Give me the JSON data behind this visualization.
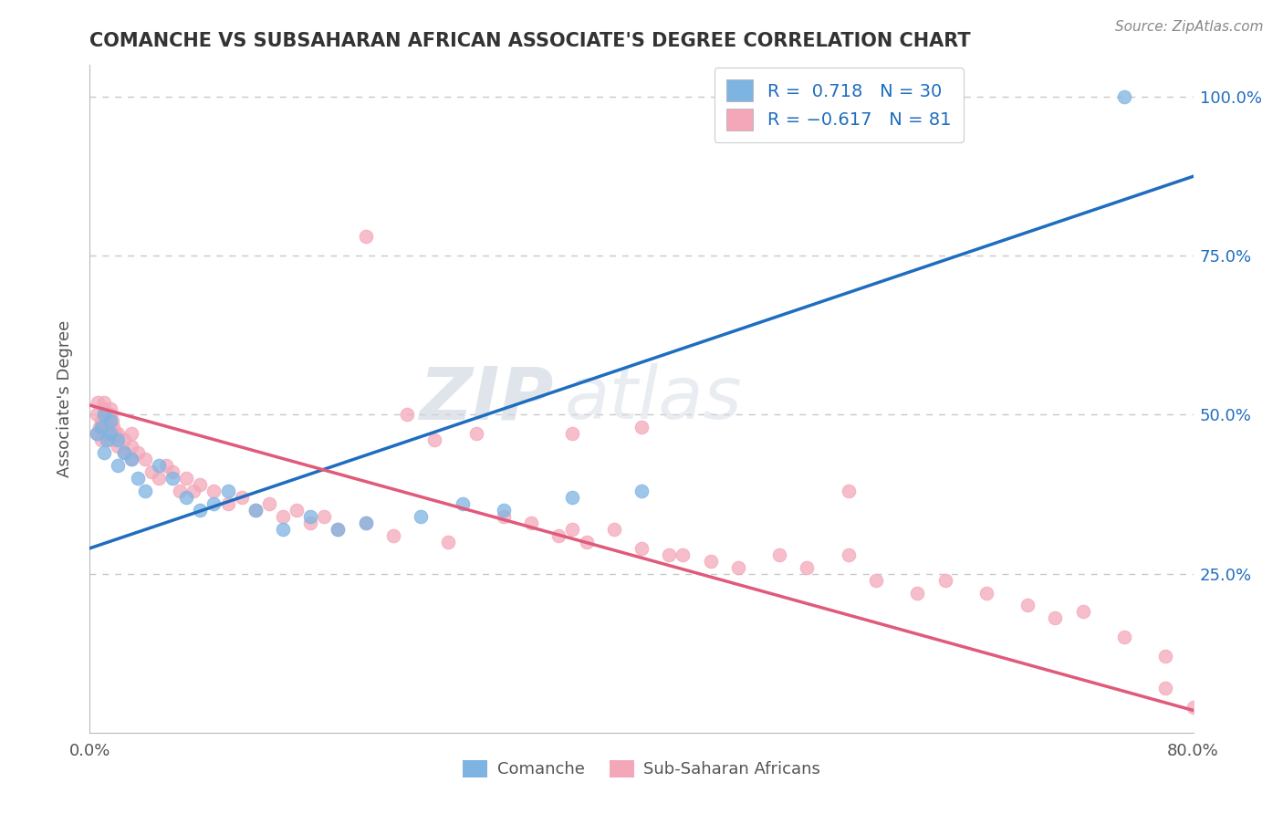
{
  "title": "COMANCHE VS SUBSAHARAN AFRICAN ASSOCIATE'S DEGREE CORRELATION CHART",
  "source": "Source: ZipAtlas.com",
  "ylabel": "Associate's Degree",
  "legend_labels": [
    "Comanche",
    "Sub-Saharan Africans"
  ],
  "r_comanche": 0.718,
  "n_comanche": 30,
  "r_subsaharan": -0.617,
  "n_subsaharan": 81,
  "comanche_color": "#7eb4e2",
  "subsaharan_color": "#f4a7b9",
  "comanche_line_color": "#1f6dbf",
  "subsaharan_line_color": "#e05a7a",
  "watermark_zip": "ZIP",
  "watermark_atlas": "atlas",
  "background_color": "#ffffff",
  "grid_color": "#c8c8c8",
  "xlim": [
    0.0,
    0.8
  ],
  "ylim": [
    0.0,
    1.05
  ],
  "comanche_line_x0": 0.0,
  "comanche_line_y0": 0.29,
  "comanche_line_x1": 0.8,
  "comanche_line_y1": 0.875,
  "subsaharan_line_x0": 0.0,
  "subsaharan_line_y0": 0.515,
  "subsaharan_line_x1": 0.8,
  "subsaharan_line_y1": 0.035,
  "comanche_scatter_x": [
    0.005,
    0.008,
    0.01,
    0.01,
    0.012,
    0.015,
    0.015,
    0.02,
    0.02,
    0.025,
    0.03,
    0.035,
    0.04,
    0.05,
    0.06,
    0.07,
    0.08,
    0.09,
    0.1,
    0.12,
    0.14,
    0.16,
    0.18,
    0.2,
    0.24,
    0.27,
    0.3,
    0.35,
    0.4,
    0.75
  ],
  "comanche_scatter_y": [
    0.47,
    0.48,
    0.44,
    0.5,
    0.46,
    0.47,
    0.49,
    0.42,
    0.46,
    0.44,
    0.43,
    0.4,
    0.38,
    0.42,
    0.4,
    0.37,
    0.35,
    0.36,
    0.38,
    0.35,
    0.32,
    0.34,
    0.32,
    0.33,
    0.34,
    0.36,
    0.35,
    0.37,
    0.38,
    1.0
  ],
  "subsaharan_scatter_x": [
    0.005,
    0.005,
    0.006,
    0.007,
    0.008,
    0.008,
    0.01,
    0.01,
    0.01,
    0.01,
    0.012,
    0.013,
    0.015,
    0.015,
    0.015,
    0.015,
    0.016,
    0.017,
    0.018,
    0.02,
    0.02,
    0.025,
    0.025,
    0.03,
    0.03,
    0.03,
    0.035,
    0.04,
    0.045,
    0.05,
    0.055,
    0.06,
    0.065,
    0.07,
    0.075,
    0.08,
    0.09,
    0.1,
    0.11,
    0.12,
    0.13,
    0.14,
    0.15,
    0.16,
    0.17,
    0.18,
    0.2,
    0.2,
    0.22,
    0.23,
    0.25,
    0.26,
    0.28,
    0.3,
    0.32,
    0.34,
    0.35,
    0.35,
    0.36,
    0.38,
    0.4,
    0.4,
    0.42,
    0.43,
    0.45,
    0.47,
    0.5,
    0.52,
    0.55,
    0.55,
    0.57,
    0.6,
    0.62,
    0.65,
    0.68,
    0.7,
    0.72,
    0.75,
    0.78,
    0.78,
    0.8
  ],
  "subsaharan_scatter_y": [
    0.47,
    0.5,
    0.52,
    0.48,
    0.46,
    0.49,
    0.5,
    0.52,
    0.48,
    0.51,
    0.47,
    0.5,
    0.46,
    0.48,
    0.5,
    0.51,
    0.49,
    0.48,
    0.47,
    0.45,
    0.47,
    0.44,
    0.46,
    0.43,
    0.45,
    0.47,
    0.44,
    0.43,
    0.41,
    0.4,
    0.42,
    0.41,
    0.38,
    0.4,
    0.38,
    0.39,
    0.38,
    0.36,
    0.37,
    0.35,
    0.36,
    0.34,
    0.35,
    0.33,
    0.34,
    0.32,
    0.33,
    0.78,
    0.31,
    0.5,
    0.46,
    0.3,
    0.47,
    0.34,
    0.33,
    0.31,
    0.32,
    0.47,
    0.3,
    0.32,
    0.29,
    0.48,
    0.28,
    0.28,
    0.27,
    0.26,
    0.28,
    0.26,
    0.28,
    0.38,
    0.24,
    0.22,
    0.24,
    0.22,
    0.2,
    0.18,
    0.19,
    0.15,
    0.12,
    0.07,
    0.04
  ]
}
